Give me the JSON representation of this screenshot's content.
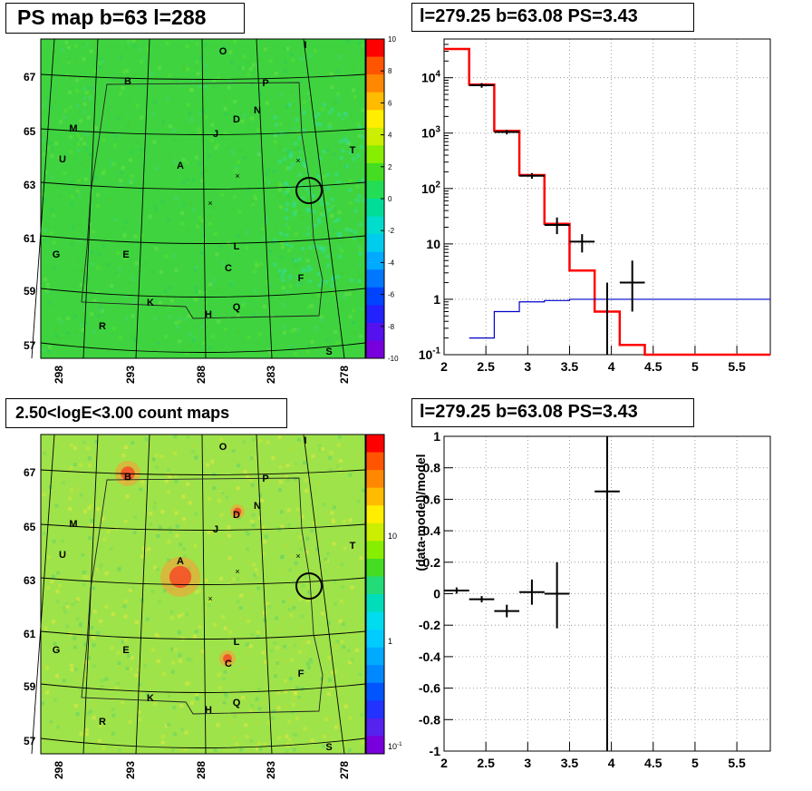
{
  "panels": {
    "top_left_title": "PS map b=63 l=288",
    "top_right_title": "l=279.25 b=63.08 PS=3.43",
    "bottom_left_title": "2.50<logE<3.00 count maps",
    "bottom_right_title": "l=279.25 b=63.08 PS=3.43"
  },
  "sky_map": {
    "lat_ticks": [
      "67",
      "65",
      "63",
      "61",
      "59",
      "57"
    ],
    "lon_ticks": [
      "298",
      "293",
      "288",
      "283",
      "278"
    ],
    "source_labels": [
      "O",
      "I",
      "B",
      "P",
      "M",
      "N",
      "D",
      "J",
      "U",
      "T",
      "A",
      "L",
      "C",
      "F",
      "G",
      "E",
      "K",
      "H",
      "Q",
      "R",
      "S"
    ],
    "ps_colorbar_ticks": [
      "10",
      "8",
      "6",
      "4",
      "2",
      "0",
      "-2",
      "-4",
      "-6",
      "-8",
      "-10"
    ],
    "count_colorbar_ticks": [
      "10",
      "1",
      "10-1"
    ],
    "colors": {
      "ps_background": "#3fd43f",
      "count_background": "#9fe34a"
    }
  },
  "chart_data": [
    {
      "type": "step",
      "title": "l=279.25 b=63.08 PS=3.43",
      "yscale": "log",
      "xlim": [
        2,
        5.9
      ],
      "ylim": [
        0.1,
        50000
      ],
      "xticks": [
        "2",
        "2.5",
        "3",
        "3.5",
        "4",
        "4.5",
        "5",
        "5.5"
      ],
      "yticks": [
        "10-1",
        "1",
        "10",
        "102",
        "103",
        "104"
      ],
      "grid": true,
      "series": [
        {
          "color": "#ff0000",
          "bin_edges": [
            2.0,
            2.3,
            2.6,
            2.9,
            3.2,
            3.5,
            3.8,
            4.1,
            4.4,
            5.9
          ],
          "values": [
            33000,
            7500,
            1100,
            175,
            23,
            3.3,
            0.6,
            0.15,
            0.1
          ]
        },
        {
          "color": "#0000cc",
          "bin_edges": [
            2.3,
            2.6,
            2.9,
            3.2,
            3.5,
            3.8,
            4.1,
            4.4,
            5.9
          ],
          "values": [
            0.2,
            0.6,
            0.9,
            0.95,
            1.0,
            1.0,
            1.0,
            1.0
          ]
        },
        {
          "color": "#000000",
          "points": [
            {
              "x": 2.45,
              "y": 7300,
              "xerr": 0.15,
              "ylo": 6600,
              "yhi": 8000
            },
            {
              "x": 2.75,
              "y": 1050,
              "xerr": 0.15,
              "ylo": 950,
              "yhi": 1150
            },
            {
              "x": 3.05,
              "y": 170,
              "xerr": 0.15,
              "ylo": 150,
              "yhi": 190
            },
            {
              "x": 3.35,
              "y": 22,
              "xerr": 0.15,
              "ylo": 15,
              "yhi": 30
            },
            {
              "x": 3.65,
              "y": 11,
              "xerr": 0.15,
              "ylo": 7,
              "yhi": 15
            },
            {
              "x": 3.95,
              "y": 0.1,
              "xerr": 0.0,
              "ylo": 0.1,
              "yhi": 2
            },
            {
              "x": 4.25,
              "y": 2,
              "xerr": 0.15,
              "ylo": 0.6,
              "yhi": 5
            }
          ]
        }
      ]
    },
    {
      "type": "scatter",
      "title": "l=279.25 b=63.08 PS=3.43",
      "ylabel": "(data-model)/model",
      "xlim": [
        2,
        5.9
      ],
      "ylim": [
        -1,
        1
      ],
      "xticks": [
        "2",
        "2.5",
        "3",
        "3.5",
        "4",
        "4.5",
        "5",
        "5.5"
      ],
      "yticks": [
        "-1",
        "-0.8",
        "-0.6",
        "-0.4",
        "-0.2",
        "0",
        "0.2",
        "0.4",
        "0.6",
        "0.8",
        "1"
      ],
      "grid": true,
      "points": [
        {
          "x": 2.15,
          "y": 0.02,
          "xerr": 0.15,
          "ylo": 0.0,
          "yhi": 0.04
        },
        {
          "x": 2.45,
          "y": -0.035,
          "xerr": 0.15,
          "ylo": -0.055,
          "yhi": -0.015
        },
        {
          "x": 2.75,
          "y": -0.11,
          "xerr": 0.15,
          "ylo": -0.15,
          "yhi": -0.07
        },
        {
          "x": 3.05,
          "y": 0.01,
          "xerr": 0.15,
          "ylo": -0.07,
          "yhi": 0.09
        },
        {
          "x": 3.35,
          "y": 0.0,
          "xerr": 0.15,
          "ylo": -0.22,
          "yhi": 0.2
        },
        {
          "x": 3.95,
          "y": 0.65,
          "xerr": 0.15,
          "ylo": -1,
          "yhi": 1
        }
      ]
    }
  ]
}
